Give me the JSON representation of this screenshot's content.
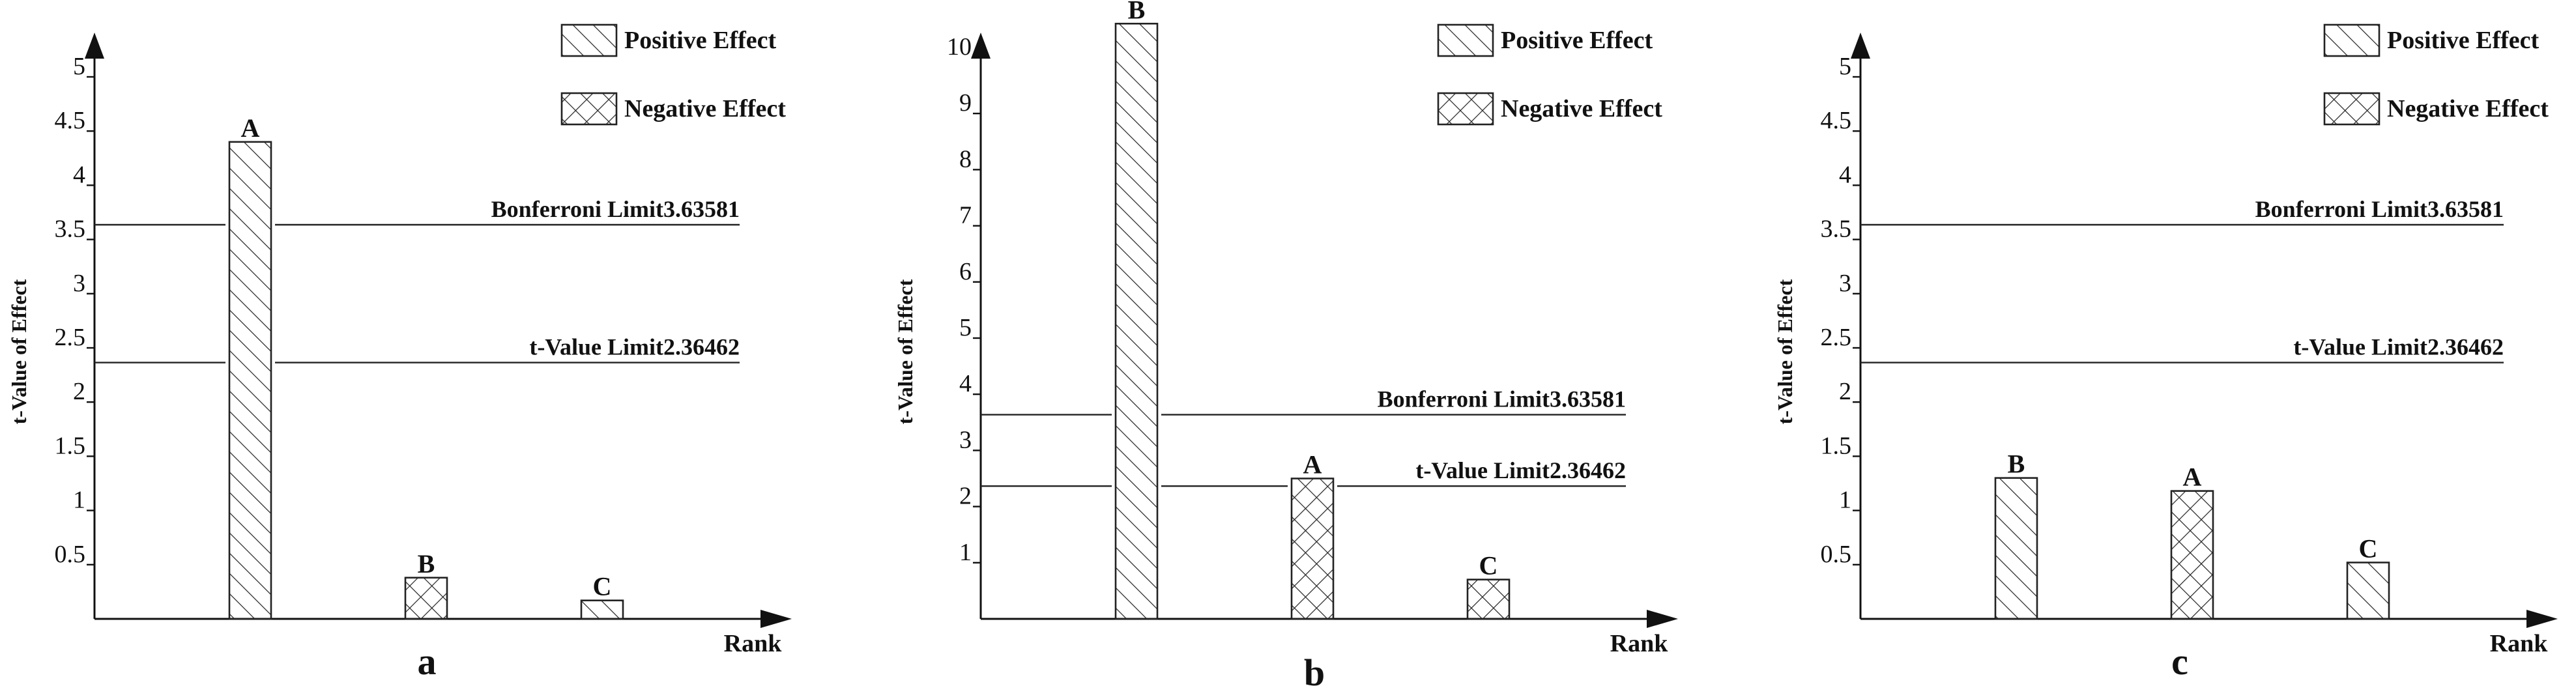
{
  "chart_data": [
    {
      "type": "bar",
      "panel_label": "a",
      "ylabel": "t-Value of Effect",
      "xlabel": "Rank",
      "ylim": [
        0,
        5
      ],
      "yticks": [
        {
          "value": 0.5,
          "label": "0.5"
        },
        {
          "value": 1,
          "label": "1"
        },
        {
          "value": 1.5,
          "label": "1.5"
        },
        {
          "value": 2,
          "label": "2"
        },
        {
          "value": 2.5,
          "label": "2.5"
        },
        {
          "value": 3,
          "label": "3"
        },
        {
          "value": 3.5,
          "label": "3.5"
        },
        {
          "value": 4,
          "label": "4"
        },
        {
          "value": 4.5,
          "label": "4.5"
        },
        {
          "value": 5,
          "label": "5"
        }
      ],
      "categories": [
        "A",
        "B",
        "C"
      ],
      "values": [
        4.4,
        0.38,
        0.17
      ],
      "effects": [
        "positive",
        "negative",
        "positive"
      ],
      "limits": [
        {
          "name": "Bonferroni Limit",
          "value": 3.63581,
          "value_text": "3.63581"
        },
        {
          "name": "t-Value Limit",
          "value": 2.36462,
          "value_text": "2.36462"
        }
      ],
      "legend": [
        {
          "key": "positive",
          "label": "Positive Effect"
        },
        {
          "key": "negative",
          "label": "Negative Effect"
        }
      ],
      "legend_position": "top-right"
    },
    {
      "type": "bar",
      "panel_label": "b",
      "ylabel": "t-Value of Effect",
      "xlabel": "Rank",
      "ylim": [
        0,
        11
      ],
      "yticks": [
        {
          "value": 1,
          "label": "1"
        },
        {
          "value": 2,
          "label": "2"
        },
        {
          "value": 3,
          "label": "3"
        },
        {
          "value": 4,
          "label": "4"
        },
        {
          "value": 5,
          "label": "5"
        },
        {
          "value": 6,
          "label": "6"
        },
        {
          "value": 7,
          "label": "7"
        },
        {
          "value": 8,
          "label": "8"
        },
        {
          "value": 9,
          "label": "9"
        },
        {
          "value": 10,
          "label": "10"
        }
      ],
      "categories": [
        "B",
        "A",
        "C"
      ],
      "values": [
        10.6,
        2.5,
        0.7
      ],
      "effects": [
        "positive",
        "negative",
        "negative"
      ],
      "limits": [
        {
          "name": "Bonferroni Limit",
          "value": 3.63581,
          "value_text": "3.63581"
        },
        {
          "name": "t-Value Limit",
          "value": 2.36462,
          "value_text": "2.36462"
        }
      ],
      "legend": [
        {
          "key": "positive",
          "label": "Positive Effect"
        },
        {
          "key": "negative",
          "label": "Negative Effect"
        }
      ],
      "legend_position": "top-right"
    },
    {
      "type": "bar",
      "panel_label": "c",
      "ylabel": "t-Value of Effect",
      "xlabel": "Rank",
      "ylim": [
        0,
        5
      ],
      "yticks": [
        {
          "value": 0.5,
          "label": "0.5"
        },
        {
          "value": 1,
          "label": "1"
        },
        {
          "value": 1.5,
          "label": "1.5"
        },
        {
          "value": 2,
          "label": "2"
        },
        {
          "value": 2.5,
          "label": "2.5"
        },
        {
          "value": 3,
          "label": "3"
        },
        {
          "value": 3.5,
          "label": "3.5"
        },
        {
          "value": 4,
          "label": "4"
        },
        {
          "value": 4.5,
          "label": "4.5"
        },
        {
          "value": 5,
          "label": "5"
        }
      ],
      "categories": [
        "B",
        "A",
        "C"
      ],
      "values": [
        1.3,
        1.18,
        0.52
      ],
      "effects": [
        "positive",
        "negative",
        "positive"
      ],
      "limits": [
        {
          "name": "Bonferroni Limit",
          "value": 3.63581,
          "value_text": "3.63581"
        },
        {
          "name": "t-Value Limit",
          "value": 2.36462,
          "value_text": "2.36462"
        }
      ],
      "legend": [
        {
          "key": "positive",
          "label": "Positive Effect"
        },
        {
          "key": "negative",
          "label": "Negative Effect"
        }
      ],
      "legend_position": "top-right"
    }
  ]
}
